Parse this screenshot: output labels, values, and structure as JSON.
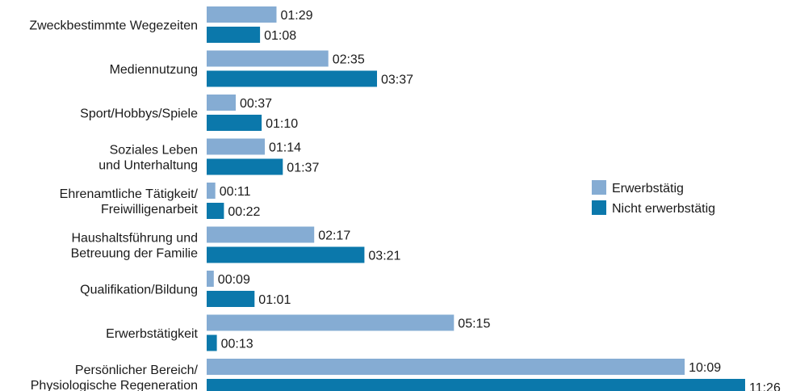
{
  "chart_data": {
    "type": "bar",
    "orientation": "horizontal",
    "categories": [
      [
        "Zweckbestimmte Wegezeiten"
      ],
      [
        "Mediennutzung"
      ],
      [
        "Sport/Hobbys/Spiele"
      ],
      [
        "Soziales Leben",
        "und Unterhaltung"
      ],
      [
        "Ehrenamtliche Tätigkeit/",
        "Freiwilligenarbeit"
      ],
      [
        "Haushaltsführung und",
        "Betreuung der Familie"
      ],
      [
        "Qualifikation/Bildung"
      ],
      [
        "Erwerbstätigkeit"
      ],
      [
        "Persönlicher Bereich/",
        "Physiologische Regeneration"
      ]
    ],
    "series": [
      {
        "name": "Erwerbstätig",
        "color": "#85acd3",
        "values_minutes": [
          89,
          155,
          37,
          74,
          11,
          137,
          9,
          315,
          609
        ],
        "labels": [
          "01:29",
          "02:35",
          "00:37",
          "01:14",
          "00:11",
          "02:17",
          "00:09",
          "05:15",
          "10:09"
        ]
      },
      {
        "name": "Nicht erwerbstätig",
        "color": "#0b78ab",
        "values_minutes": [
          68,
          217,
          70,
          97,
          22,
          201,
          61,
          13,
          686
        ],
        "labels": [
          "01:08",
          "03:37",
          "01:10",
          "01:37",
          "00:22",
          "03:21",
          "01:01",
          "00:13",
          "11:26"
        ]
      }
    ],
    "xlim_minutes": [
      0,
      686
    ],
    "grid": false,
    "legend": "right"
  }
}
